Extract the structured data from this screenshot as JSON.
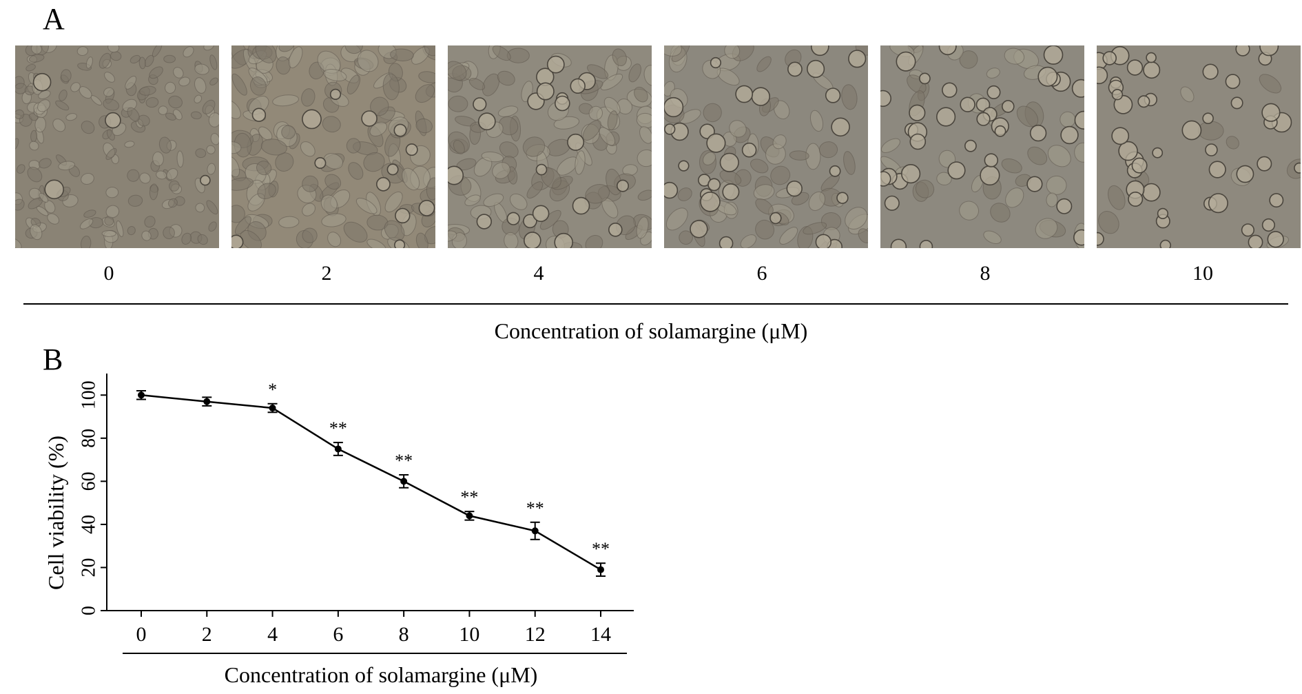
{
  "figure": {
    "panel_a": {
      "letter": "A",
      "concentrations": [
        "0",
        "2",
        "4",
        "6",
        "8",
        "10"
      ],
      "xlabel": "Concentration of solamargine (μM)",
      "image_tint": [
        "#8a8375",
        "#928978",
        "#8f8a7e",
        "#8c887e",
        "#8d897f",
        "#8e897e"
      ]
    },
    "panel_b": {
      "letter": "B"
    }
  },
  "chart_data": {
    "type": "line",
    "xlabel": "Concentration of solamargine (μM)",
    "ylabel": "Cell viability (%)",
    "x": [
      0,
      2,
      4,
      6,
      8,
      10,
      12,
      14
    ],
    "xticks": [
      "0",
      "2",
      "4",
      "6",
      "8",
      "10",
      "12",
      "14"
    ],
    "yticks": [
      "0",
      "20",
      "40",
      "60",
      "80",
      "100"
    ],
    "ylim": [
      0,
      110
    ],
    "series": [
      {
        "values": [
          100,
          97,
          94,
          75,
          60,
          44,
          37,
          19
        ],
        "errors": [
          2,
          2,
          2,
          3,
          3,
          2,
          4,
          3
        ],
        "annotations": [
          "",
          "",
          "*",
          "**",
          "**",
          "**",
          "**",
          "**"
        ]
      }
    ],
    "grid": false,
    "line_color": "#000000"
  }
}
